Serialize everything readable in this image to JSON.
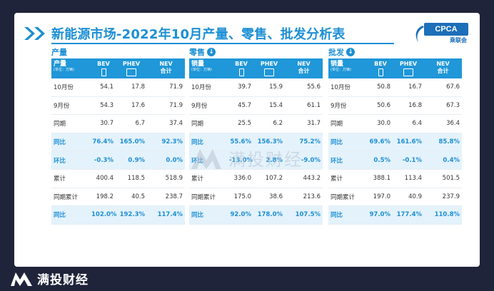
{
  "title": "新能源市场-2022年10月产量、零售、批发分析表",
  "logo": {
    "text": "CPCA",
    "sub": "乘联会"
  },
  "brand": "满投财经",
  "watermark_text": "满投财经",
  "columns": {
    "bev": "BEV",
    "phev": "PHEV",
    "nev_top": "NEV",
    "nev_bottom": "合计",
    "unit": "(单位：万辆)"
  },
  "sections": [
    {
      "label": "产量",
      "has_arrow": false,
      "head": "产量",
      "rows": [
        {
          "label": "10月份",
          "bev": "54.1",
          "phev": "17.8",
          "nev": "71.9",
          "hl": false
        },
        {
          "label": "9月份",
          "bev": "54.3",
          "phev": "17.6",
          "nev": "71.9",
          "hl": false
        },
        {
          "label": "同期",
          "bev": "30.7",
          "phev": "6.7",
          "nev": "37.4",
          "hl": false
        },
        {
          "label": "同比",
          "bev": "76.4%",
          "phev": "165.0%",
          "nev": "92.3%",
          "hl": true
        },
        {
          "label": "环比",
          "bev": "-0.3%",
          "phev": "0.9%",
          "nev": "0.0%",
          "hl": true
        },
        {
          "label": "累计",
          "bev": "400.4",
          "phev": "118.5",
          "nev": "518.9",
          "hl": false
        },
        {
          "label": "同期累计",
          "bev": "198.2",
          "phev": "40.5",
          "nev": "238.7",
          "hl": false
        },
        {
          "label": "同比",
          "bev": "102.0%",
          "phev": "192.3%",
          "nev": "117.4%",
          "hl": true
        }
      ]
    },
    {
      "label": "零售",
      "has_arrow": true,
      "head": "销量",
      "rows": [
        {
          "label": "10月份",
          "bev": "39.7",
          "phev": "15.9",
          "nev": "55.6",
          "hl": false
        },
        {
          "label": "9月份",
          "bev": "45.7",
          "phev": "15.4",
          "nev": "61.1",
          "hl": false
        },
        {
          "label": "同期",
          "bev": "25.5",
          "phev": "6.2",
          "nev": "31.7",
          "hl": false
        },
        {
          "label": "同比",
          "bev": "55.6%",
          "phev": "156.3%",
          "nev": "75.2%",
          "hl": true
        },
        {
          "label": "环比",
          "bev": "-13.0%",
          "phev": "2.8%",
          "nev": "-9.0%",
          "hl": true
        },
        {
          "label": "累计",
          "bev": "336.0",
          "phev": "107.2",
          "nev": "443.2",
          "hl": false
        },
        {
          "label": "同期累计",
          "bev": "175.0",
          "phev": "38.6",
          "nev": "213.6",
          "hl": false
        },
        {
          "label": "同比",
          "bev": "92.0%",
          "phev": "178.0%",
          "nev": "107.5%",
          "hl": true
        }
      ]
    },
    {
      "label": "批发",
      "has_arrow": true,
      "head": "销量",
      "rows": [
        {
          "label": "10月份",
          "bev": "50.8",
          "phev": "16.7",
          "nev": "67.6",
          "hl": false
        },
        {
          "label": "9月份",
          "bev": "50.6",
          "phev": "16.8",
          "nev": "67.3",
          "hl": false
        },
        {
          "label": "同期",
          "bev": "30.0",
          "phev": "6.4",
          "nev": "36.4",
          "hl": false
        },
        {
          "label": "同比",
          "bev": "69.6%",
          "phev": "161.6%",
          "nev": "85.8%",
          "hl": true
        },
        {
          "label": "环比",
          "bev": "0.5%",
          "phev": "-0.1%",
          "nev": "0.4%",
          "hl": true
        },
        {
          "label": "累计",
          "bev": "388.1",
          "phev": "113.4",
          "nev": "501.5",
          "hl": false
        },
        {
          "label": "同期累计",
          "bev": "197.0",
          "phev": "40.9",
          "nev": "237.9",
          "hl": false
        },
        {
          "label": "同比",
          "bev": "97.0%",
          "phev": "177.4%",
          "nev": "110.8%",
          "hl": true
        }
      ]
    }
  ]
}
